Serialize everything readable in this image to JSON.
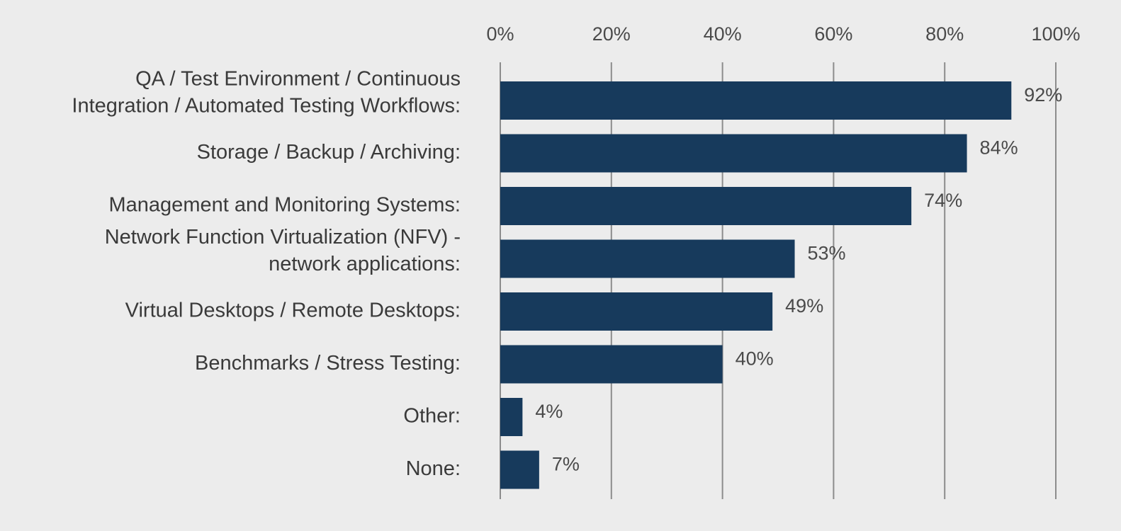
{
  "chart_data": {
    "type": "bar",
    "orientation": "horizontal",
    "categories": [
      [
        "QA / Test Environment / Continuous",
        "Integration / Automated Testing Workflows:"
      ],
      [
        "Storage / Backup / Archiving:"
      ],
      [
        "Management and Monitoring Systems:"
      ],
      [
        "Network Function Virtualization (NFV) -",
        "network applications:"
      ],
      [
        "Virtual Desktops / Remote Desktops:"
      ],
      [
        "Benchmarks / Stress Testing:"
      ],
      [
        "Other:"
      ],
      [
        "None:"
      ]
    ],
    "values": [
      92,
      84,
      74,
      53,
      49,
      40,
      4,
      7
    ],
    "value_labels": [
      "92%",
      "84%",
      "74%",
      "53%",
      "49%",
      "40%",
      "4%",
      "7%"
    ],
    "xlim": [
      0,
      100
    ],
    "x_ticks": [
      0,
      20,
      40,
      60,
      80,
      100
    ],
    "x_tick_labels": [
      "0%",
      "20%",
      "40%",
      "60%",
      "80%",
      "100%"
    ],
    "x_axis_position": "top",
    "grid": true,
    "legend": "none",
    "title": "",
    "xlabel": "",
    "ylabel": "",
    "colors": {
      "bar": "#173a5c",
      "grid": "#8c8c8c",
      "background": "#ececec"
    }
  }
}
